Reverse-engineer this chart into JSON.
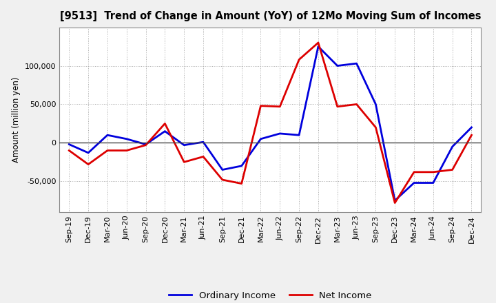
{
  "title": "[9513]  Trend of Change in Amount (YoY) of 12Mo Moving Sum of Incomes",
  "ylabel": "Amount (million yen)",
  "labels": [
    "Sep-19",
    "Dec-19",
    "Mar-20",
    "Jun-20",
    "Sep-20",
    "Dec-20",
    "Mar-21",
    "Jun-21",
    "Sep-21",
    "Dec-21",
    "Mar-22",
    "Jun-22",
    "Sep-22",
    "Dec-22",
    "Mar-23",
    "Jun-23",
    "Sep-23",
    "Dec-23",
    "Mar-24",
    "Jun-24",
    "Sep-24",
    "Dec-24"
  ],
  "ordinary_income": [
    -2000,
    -13000,
    10000,
    5000,
    -2000,
    15000,
    -3000,
    1000,
    -35000,
    -30000,
    5000,
    12000,
    10000,
    125000,
    100000,
    103000,
    50000,
    -75000,
    -52000,
    -52000,
    -5000,
    20000
  ],
  "net_income": [
    -10000,
    -28000,
    -10000,
    -10000,
    -3000,
    25000,
    -25000,
    -18000,
    -48000,
    -53000,
    48000,
    47000,
    108000,
    130000,
    47000,
    50000,
    20000,
    -78000,
    -38000,
    -38000,
    -35000,
    10000
  ],
  "ordinary_income_color": "#0000dd",
  "net_income_color": "#dd0000",
  "background_color": "#f0f0f0",
  "plot_bg_color": "#ffffff",
  "grid_color": "#aaaaaa",
  "ylim": [
    -90000,
    150000
  ],
  "yticks": [
    -50000,
    0,
    50000,
    100000
  ],
  "legend_labels": [
    "Ordinary Income",
    "Net Income"
  ],
  "line_width": 2.0,
  "title_fontsize": 10.5,
  "axis_label_fontsize": 8.5,
  "tick_fontsize": 8,
  "legend_fontsize": 9.5
}
